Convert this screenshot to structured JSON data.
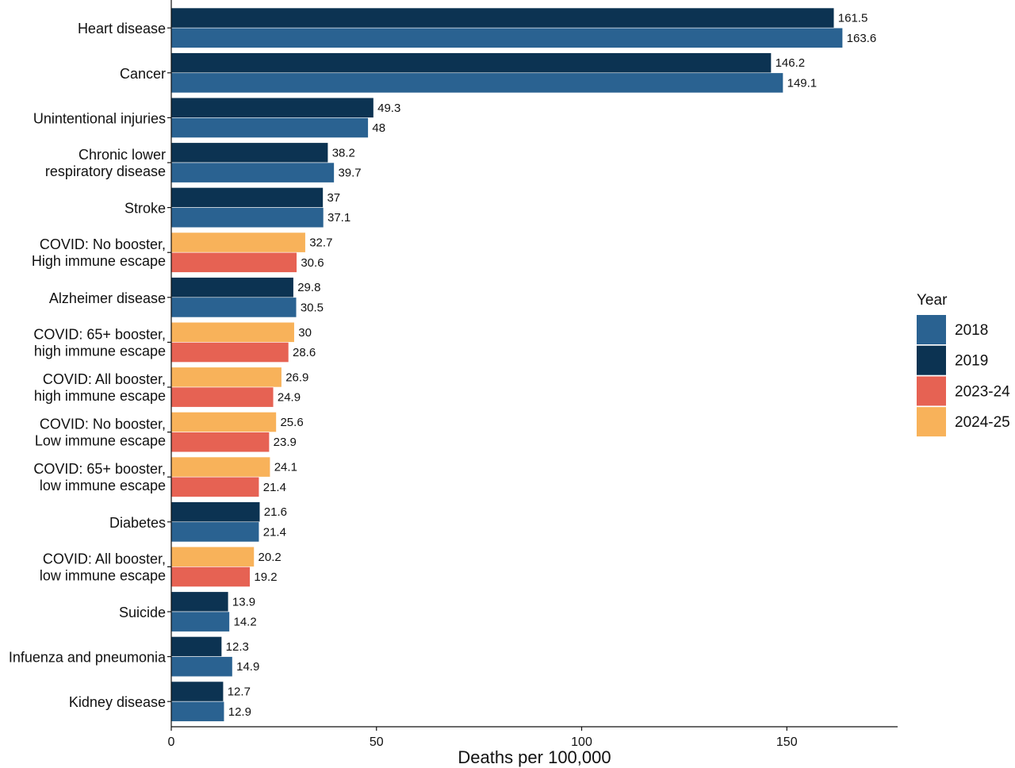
{
  "chart_data": {
    "type": "bar",
    "orientation": "horizontal",
    "title": "",
    "xlabel": "Deaths per 100,000",
    "ylabel": "",
    "xlim": [
      0,
      177
    ],
    "x_ticks": [
      0,
      50,
      100,
      150
    ],
    "grid": false,
    "legend_position": "right",
    "legend": {
      "title": "Year",
      "items": [
        {
          "name": "2018",
          "color": "#2a6291"
        },
        {
          "name": "2019",
          "color": "#0c3352"
        },
        {
          "name": "2023-24",
          "color": "#e66253"
        },
        {
          "name": "2024-25",
          "color": "#f8b25a"
        }
      ]
    },
    "categories": [
      {
        "label": [
          "Heart disease"
        ],
        "bars": [
          {
            "series": "2019",
            "value": 161.5,
            "label": "161.5"
          },
          {
            "series": "2018",
            "value": 163.6,
            "label": "163.6"
          }
        ]
      },
      {
        "label": [
          "Cancer"
        ],
        "bars": [
          {
            "series": "2019",
            "value": 146.2,
            "label": "146.2"
          },
          {
            "series": "2018",
            "value": 149.1,
            "label": "149.1"
          }
        ]
      },
      {
        "label": [
          "Unintentional injuries"
        ],
        "bars": [
          {
            "series": "2019",
            "value": 49.3,
            "label": "49.3"
          },
          {
            "series": "2018",
            "value": 48,
            "label": "48"
          }
        ]
      },
      {
        "label": [
          "Chronic lower",
          "respiratory disease"
        ],
        "bars": [
          {
            "series": "2019",
            "value": 38.2,
            "label": "38.2"
          },
          {
            "series": "2018",
            "value": 39.7,
            "label": "39.7"
          }
        ]
      },
      {
        "label": [
          "Stroke"
        ],
        "bars": [
          {
            "series": "2019",
            "value": 37,
            "label": "37"
          },
          {
            "series": "2018",
            "value": 37.1,
            "label": "37.1"
          }
        ]
      },
      {
        "label": [
          "COVID: No booster,",
          "High immune escape"
        ],
        "bars": [
          {
            "series": "2024-25",
            "value": 32.7,
            "label": "32.7"
          },
          {
            "series": "2023-24",
            "value": 30.6,
            "label": "30.6"
          }
        ]
      },
      {
        "label": [
          "Alzheimer disease"
        ],
        "bars": [
          {
            "series": "2019",
            "value": 29.8,
            "label": "29.8"
          },
          {
            "series": "2018",
            "value": 30.5,
            "label": "30.5"
          }
        ]
      },
      {
        "label": [
          "COVID: 65+ booster,",
          "high immune escape"
        ],
        "bars": [
          {
            "series": "2024-25",
            "value": 30,
            "label": "30"
          },
          {
            "series": "2023-24",
            "value": 28.6,
            "label": "28.6"
          }
        ]
      },
      {
        "label": [
          "COVID: All booster,",
          "high immune escape"
        ],
        "bars": [
          {
            "series": "2024-25",
            "value": 26.9,
            "label": "26.9"
          },
          {
            "series": "2023-24",
            "value": 24.9,
            "label": "24.9"
          }
        ]
      },
      {
        "label": [
          "COVID: No booster,",
          "Low immune escape"
        ],
        "bars": [
          {
            "series": "2024-25",
            "value": 25.6,
            "label": "25.6"
          },
          {
            "series": "2023-24",
            "value": 23.9,
            "label": "23.9"
          }
        ]
      },
      {
        "label": [
          "COVID: 65+ booster,",
          "low immune escape"
        ],
        "bars": [
          {
            "series": "2024-25",
            "value": 24.1,
            "label": "24.1"
          },
          {
            "series": "2023-24",
            "value": 21.4,
            "label": "21.4"
          }
        ]
      },
      {
        "label": [
          "Diabetes"
        ],
        "bars": [
          {
            "series": "2019",
            "value": 21.6,
            "label": "21.6"
          },
          {
            "series": "2018",
            "value": 21.4,
            "label": "21.4"
          }
        ]
      },
      {
        "label": [
          "COVID: All booster,",
          "low immune escape"
        ],
        "bars": [
          {
            "series": "2024-25",
            "value": 20.2,
            "label": "20.2"
          },
          {
            "series": "2023-24",
            "value": 19.2,
            "label": "19.2"
          }
        ]
      },
      {
        "label": [
          "Suicide"
        ],
        "bars": [
          {
            "series": "2019",
            "value": 13.9,
            "label": "13.9"
          },
          {
            "series": "2018",
            "value": 14.2,
            "label": "14.2"
          }
        ]
      },
      {
        "label": [
          "Infuenza and pneumonia"
        ],
        "bars": [
          {
            "series": "2019",
            "value": 12.3,
            "label": "12.3"
          },
          {
            "series": "2018",
            "value": 14.9,
            "label": "14.9"
          }
        ]
      },
      {
        "label": [
          "Kidney disease"
        ],
        "bars": [
          {
            "series": "2019",
            "value": 12.7,
            "label": "12.7"
          },
          {
            "series": "2018",
            "value": 12.9,
            "label": "12.9"
          }
        ]
      }
    ]
  }
}
